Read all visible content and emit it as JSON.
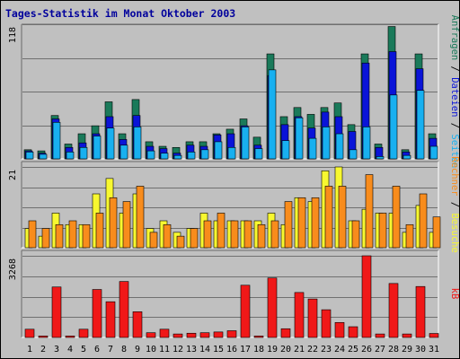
{
  "title": "Tages-Statistik im Monat Oktober 2003",
  "colors": {
    "background": "#c0c0c0",
    "frame": "#000000",
    "panel_border_light": "#ffffff",
    "panel_border_dark": "#6a6a6a",
    "gridline": "#707070",
    "anfragen": "#1a7a5a",
    "dateien": "#0a14d8",
    "seiten": "#18b0f0",
    "besuche": "#f8f830",
    "rechner": "#f88c1c",
    "kb": "#f01818",
    "title": "#00009c",
    "weekend_day": "#1a7a5a",
    "weekday_day": "#000000",
    "separator": "#000000"
  },
  "chart_data": [
    {
      "type": "bar",
      "panel": "top",
      "ylim": [
        0,
        118
      ],
      "y_tick_label": "118",
      "legend": [
        "Anfragen",
        "Dateien",
        "Seiten"
      ],
      "legend_separator": " / ",
      "categories": [
        "1",
        "2",
        "3",
        "4",
        "5",
        "6",
        "7",
        "8",
        "9",
        "10",
        "11",
        "12",
        "13",
        "14",
        "15",
        "16",
        "17",
        "18",
        "19",
        "20",
        "21",
        "22",
        "23",
        "24",
        "25",
        "26",
        "27",
        "28",
        "29",
        "30",
        "31"
      ],
      "weekend_days": [
        4,
        5,
        11,
        12,
        18,
        19,
        25,
        26
      ],
      "series": [
        {
          "name": "Anfragen",
          "values": [
            8,
            7,
            38,
            13,
            22,
            29,
            50,
            22,
            52,
            15,
            11,
            10,
            15,
            15,
            22,
            26,
            35,
            19,
            92,
            37,
            45,
            39,
            45,
            49,
            30,
            92,
            13,
            116,
            8,
            92,
            22
          ]
        },
        {
          "name": "Dateien",
          "values": [
            7,
            5,
            35,
            10,
            14,
            22,
            37,
            17,
            38,
            11,
            9,
            5,
            12,
            11,
            21,
            22,
            29,
            12,
            73,
            30,
            37,
            27,
            41,
            37,
            24,
            84,
            10,
            94,
            6,
            79,
            18
          ]
        },
        {
          "name": "Seiten",
          "values": [
            6,
            4,
            32,
            6,
            10,
            20,
            27,
            12,
            28,
            7,
            5,
            3,
            6,
            8,
            15,
            10,
            28,
            9,
            78,
            16,
            36,
            18,
            28,
            22,
            8,
            28,
            2,
            56,
            3,
            60,
            11
          ]
        }
      ]
    },
    {
      "type": "bar",
      "panel": "middle",
      "ylim": [
        0,
        21
      ],
      "y_tick_label": "21",
      "legend": [
        "Rechner",
        "Besuche"
      ],
      "legend_separator": " / ",
      "categories": [
        "1",
        "2",
        "3",
        "4",
        "5",
        "6",
        "7",
        "8",
        "9",
        "10",
        "11",
        "12",
        "13",
        "14",
        "15",
        "16",
        "17",
        "18",
        "19",
        "20",
        "21",
        "22",
        "23",
        "24",
        "25",
        "26",
        "27",
        "28",
        "29",
        "30",
        "31"
      ],
      "series": [
        {
          "name": "Besuche",
          "values": [
            5,
            3,
            9,
            6,
            6,
            14,
            18,
            9,
            14,
            5,
            7,
            4,
            5,
            9,
            7,
            7,
            7,
            7,
            9,
            6,
            13,
            12,
            20,
            21,
            7,
            10,
            9,
            9,
            4,
            11,
            4
          ]
        },
        {
          "name": "Rechner",
          "values": [
            7,
            5,
            6,
            7,
            6,
            9,
            13,
            12,
            16,
            4,
            6,
            3,
            5,
            7,
            9,
            7,
            7,
            6,
            7,
            12,
            13,
            13,
            16,
            16,
            7,
            19,
            9,
            16,
            6,
            14,
            8
          ]
        }
      ]
    },
    {
      "type": "bar",
      "panel": "bottom",
      "ylim": [
        0,
        3268
      ],
      "y_tick_label": "3268",
      "legend": [
        "kB"
      ],
      "categories": [
        "1",
        "2",
        "3",
        "4",
        "5",
        "6",
        "7",
        "8",
        "9",
        "10",
        "11",
        "12",
        "13",
        "14",
        "15",
        "16",
        "17",
        "18",
        "19",
        "20",
        "21",
        "22",
        "23",
        "24",
        "25",
        "26",
        "27",
        "28",
        "29",
        "30",
        "31"
      ],
      "series": [
        {
          "name": "kB",
          "values": [
            330,
            60,
            2020,
            60,
            330,
            1920,
            1430,
            2240,
            1030,
            190,
            330,
            140,
            170,
            190,
            220,
            270,
            2090,
            60,
            2380,
            350,
            1800,
            1540,
            1110,
            600,
            430,
            3268,
            140,
            2160,
            140,
            2040,
            160
          ]
        }
      ]
    }
  ]
}
